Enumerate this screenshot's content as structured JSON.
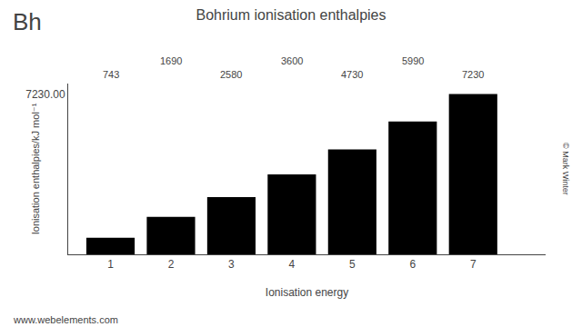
{
  "chart_data": {
    "type": "bar",
    "title": "Bohrium ionisation enthalpies",
    "xlabel": "Ionisation energy",
    "ylabel": "Ionisation enthalpies/kJ mol⁻¹",
    "x": [
      1,
      2,
      3,
      4,
      5,
      6,
      7
    ],
    "values": [
      743,
      1690,
      2580,
      3600,
      4730,
      5990,
      7230
    ],
    "color": "#000000",
    "xlim": [
      0.3,
      8.2
    ],
    "xticks": [
      1,
      2,
      3,
      4,
      5,
      6,
      7
    ],
    "ylim": [
      0,
      7700
    ],
    "yticks": [
      {
        "value": 7230,
        "label": "7230.00"
      }
    ],
    "grid": false,
    "data_labels": true,
    "annotations": [
      "Bh",
      "© Mark Winter",
      "www.webelements.com"
    ]
  }
}
